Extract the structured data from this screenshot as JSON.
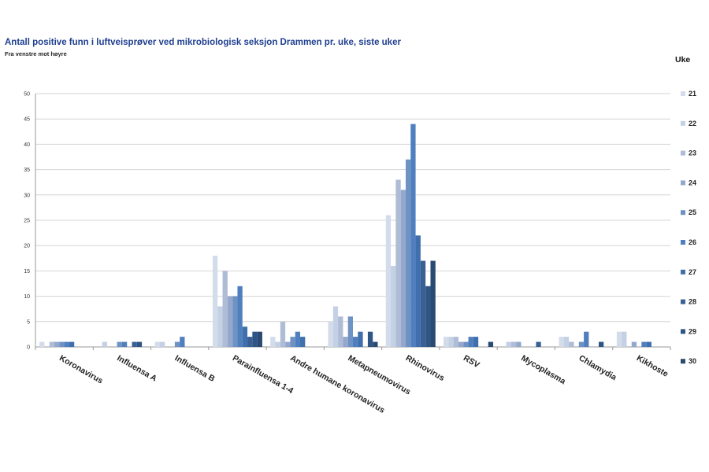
{
  "chart_data": {
    "type": "bar",
    "title": "Antall positive funn i luftveisprøver ved mikrobiologisk seksjon Drammen pr. uke, siste uker",
    "subtitle": "Fra venstre mot høyre",
    "legend_title": "Uke",
    "legend_placement": "right",
    "grid": true,
    "ylim": [
      0,
      50
    ],
    "yticks": [
      0,
      5,
      10,
      15,
      20,
      25,
      30,
      35,
      40,
      45,
      50
    ],
    "categories": [
      "Koronavirus",
      "Influensa A",
      "Influensa B",
      "Parainfluensa 1-4",
      "Andre humane koronavirus",
      "Metapneumovirus",
      "Rhinovirus",
      "RSV",
      "Mycoplasma",
      "Chlamydia",
      "Kikhoste"
    ],
    "series": [
      {
        "name": "21",
        "color": "#d3dcea",
        "values": [
          1,
          0,
          1,
          18,
          2,
          5,
          26,
          2,
          0,
          2,
          3
        ]
      },
      {
        "name": "22",
        "color": "#c4d0e3",
        "values": [
          0,
          1,
          1,
          8,
          1,
          8,
          16,
          2,
          1,
          2,
          3
        ]
      },
      {
        "name": "23",
        "color": "#aebcd6",
        "values": [
          1,
          0,
          0,
          15,
          5,
          6,
          33,
          2,
          1,
          1,
          0
        ]
      },
      {
        "name": "24",
        "color": "#94a8cd",
        "values": [
          1,
          0,
          0,
          10,
          1,
          2,
          31,
          1,
          1,
          0,
          1
        ]
      },
      {
        "name": "25",
        "color": "#6f92c4",
        "values": [
          1,
          1,
          1,
          10,
          2,
          6,
          37,
          1,
          0,
          1,
          0
        ]
      },
      {
        "name": "26",
        "color": "#4f7fbe",
        "values": [
          1,
          1,
          2,
          12,
          3,
          2,
          44,
          2,
          0,
          3,
          1
        ]
      },
      {
        "name": "27",
        "color": "#3f6fad",
        "values": [
          1,
          0,
          0,
          4,
          2,
          3,
          22,
          2,
          0,
          0,
          1
        ]
      },
      {
        "name": "28",
        "color": "#3a5f94",
        "values": [
          0,
          1,
          0,
          2,
          0,
          0,
          17,
          0,
          1,
          0,
          0
        ]
      },
      {
        "name": "29",
        "color": "#2f5585",
        "values": [
          0,
          1,
          0,
          3,
          0,
          3,
          12,
          0,
          0,
          1,
          0
        ]
      },
      {
        "name": "30",
        "color": "#2a4a74",
        "values": [
          0,
          0,
          0,
          3,
          0,
          1,
          17,
          1,
          0,
          0,
          0
        ]
      }
    ]
  }
}
